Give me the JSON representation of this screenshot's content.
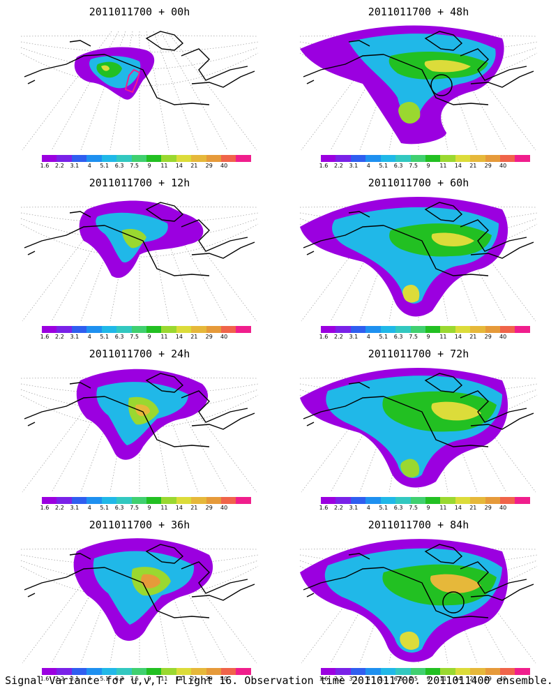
{
  "panels": [
    {
      "title": "2011011700 + 00h",
      "blobs": "p00"
    },
    {
      "title": "2011011700 + 48h",
      "blobs": "p48"
    },
    {
      "title": "2011011700 + 12h",
      "blobs": "p12"
    },
    {
      "title": "2011011700 + 60h",
      "blobs": "p60"
    },
    {
      "title": "2011011700 + 24h",
      "blobs": "p24"
    },
    {
      "title": "2011011700 + 72h",
      "blobs": "p72"
    },
    {
      "title": "2011011700 + 36h",
      "blobs": "p36"
    },
    {
      "title": "2011011700 + 84h",
      "blobs": "p84"
    }
  ],
  "colorbar": {
    "labels": [
      "1.6",
      "2.2",
      "3.1",
      "4",
      "5.1",
      "6.3",
      "7.5",
      "9",
      "11",
      "14",
      "21",
      "29",
      "40"
    ],
    "colors": [
      "#9b00e0",
      "#7a22e8",
      "#2f5ef0",
      "#1e90f0",
      "#20b8e8",
      "#32c8c0",
      "#40d070",
      "#22c022",
      "#9ad830",
      "#dcdc3a",
      "#e6b83a",
      "#e69a3a",
      "#f0644a",
      "#f01e8c"
    ]
  },
  "footer": "Signal Variance for u,v,T. Flight 16. Observation time 2011011700. 2011011400 ensemble."
}
